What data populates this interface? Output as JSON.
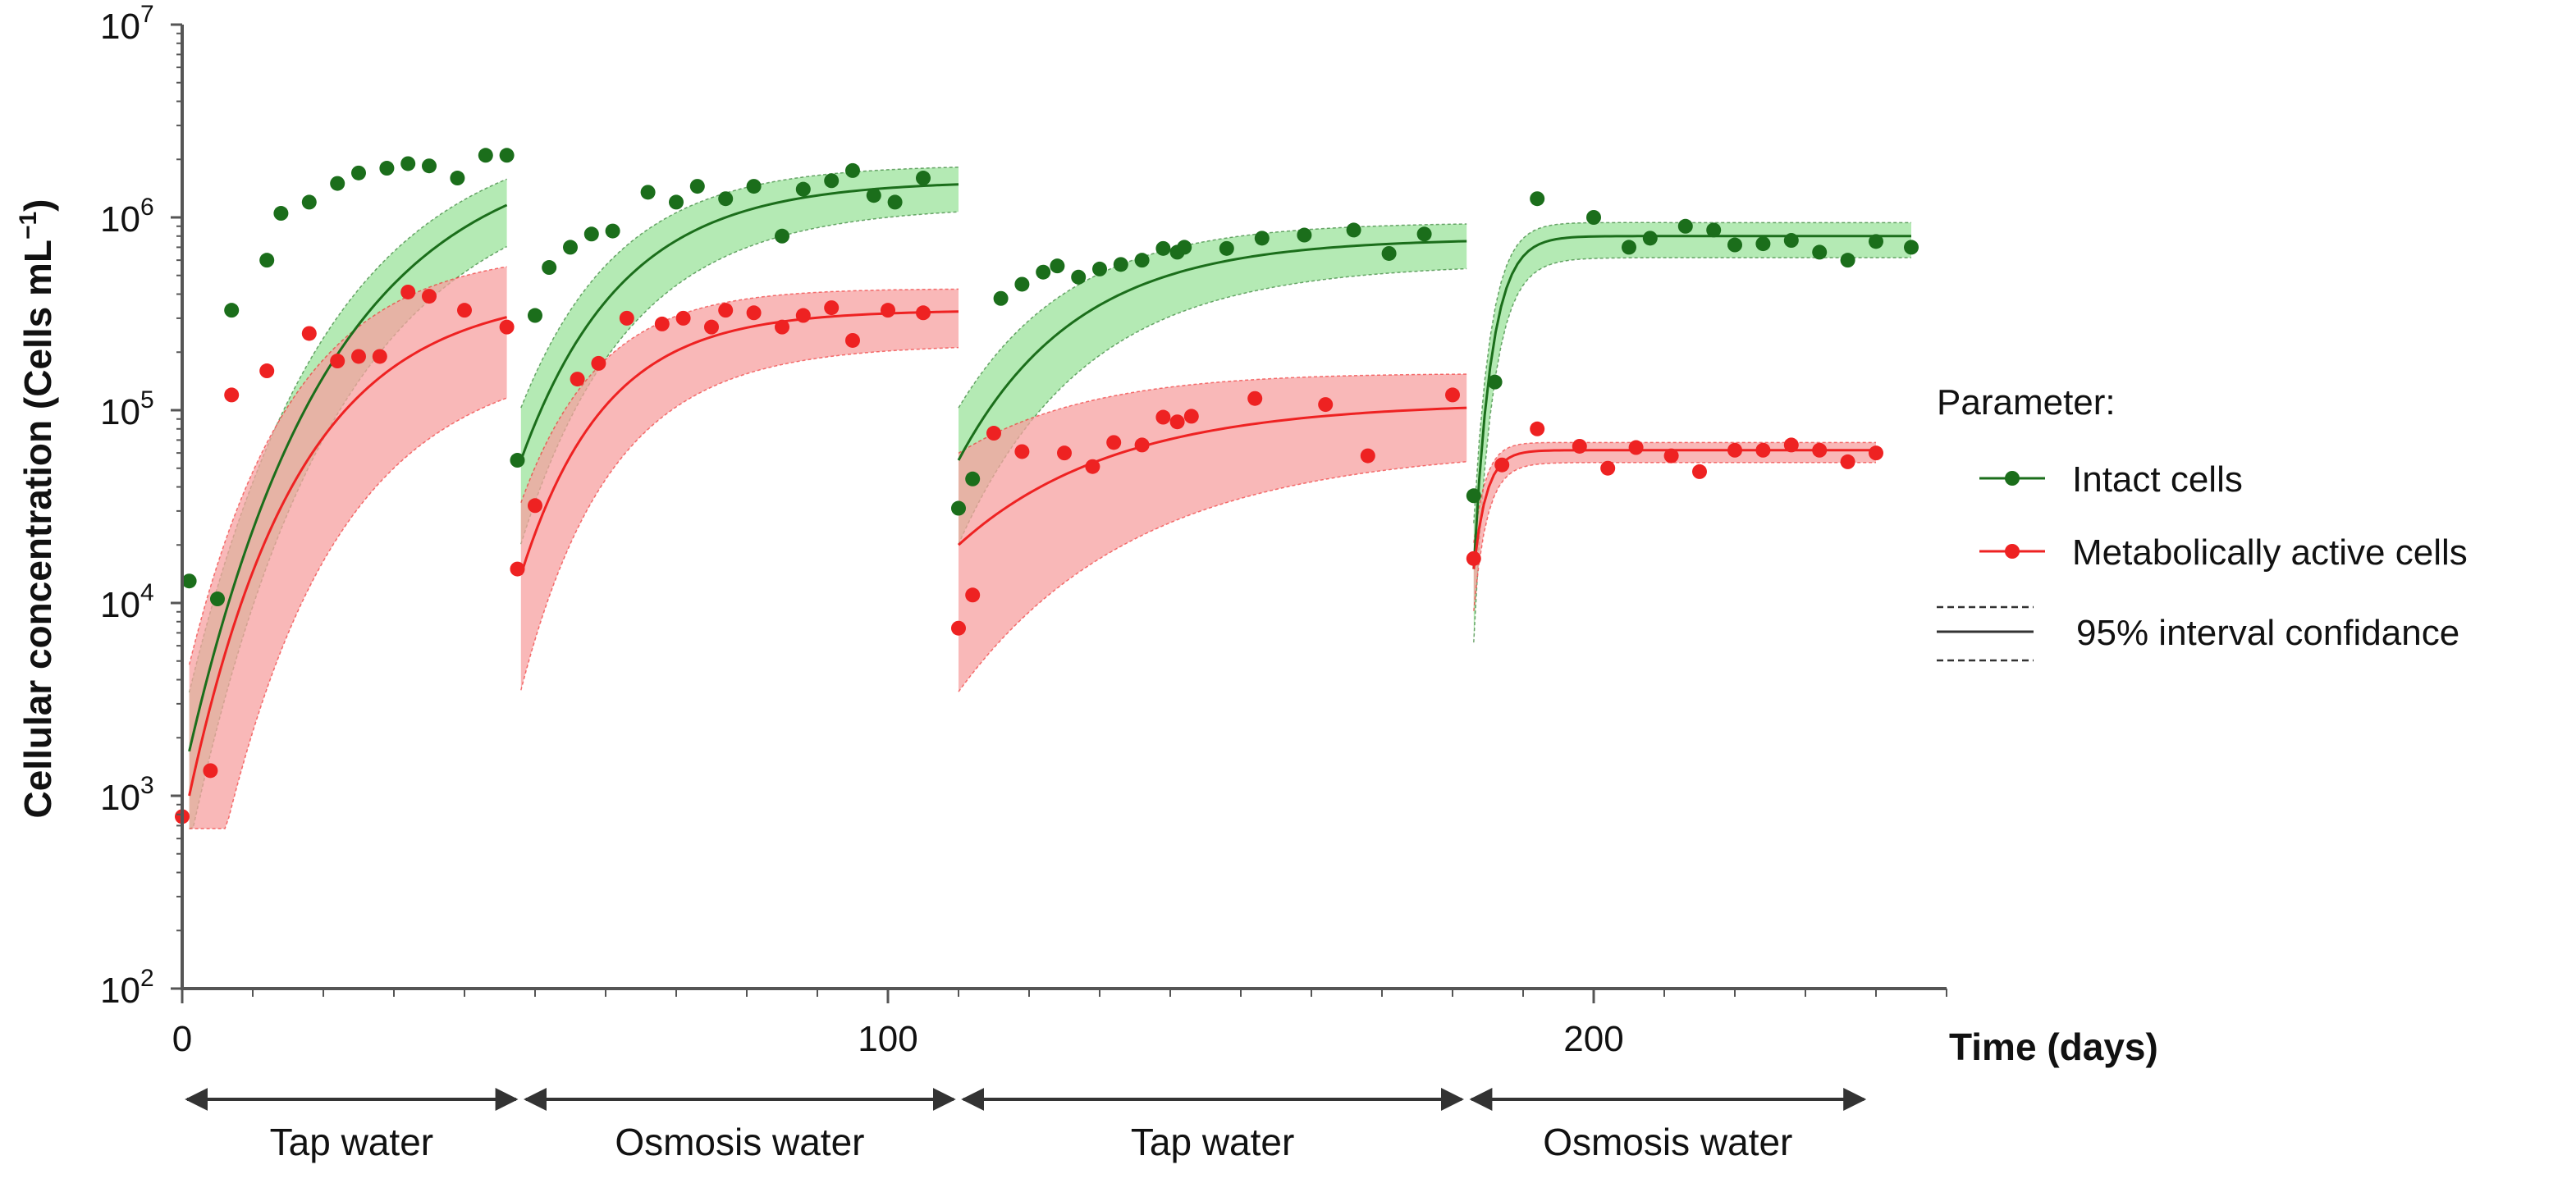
{
  "chart_data": {
    "type": "scatter",
    "title": "",
    "xlabel": "Time (days)",
    "ylabel": "Cellular concentration (Cells mL",
    "ylabel_sup": "−1",
    "ylabel_close": ")",
    "xlim": [
      0,
      250
    ],
    "ylim_log10": [
      2,
      7
    ],
    "x_ticks": [
      {
        "value": 0,
        "label": "0"
      },
      {
        "value": 100,
        "label": "100"
      },
      {
        "value": 200,
        "label": "200"
      }
    ],
    "y_ticks": [
      {
        "exp": 2,
        "base": "10",
        "sup": "2"
      },
      {
        "exp": 3,
        "base": "10",
        "sup": "3"
      },
      {
        "exp": 4,
        "base": "10",
        "sup": "4"
      },
      {
        "exp": 5,
        "base": "10",
        "sup": "5"
      },
      {
        "exp": 6,
        "base": "10",
        "sup": "6"
      },
      {
        "exp": 7,
        "base": "10",
        "sup": "7"
      }
    ],
    "phases": [
      {
        "label": "Tap water",
        "start": 0,
        "end": 48
      },
      {
        "label": "Osmosis water",
        "start": 48,
        "end": 110
      },
      {
        "label": "Tap water",
        "start": 110,
        "end": 182
      },
      {
        "label": "Osmosis water",
        "start": 182,
        "end": 239
      }
    ],
    "legend": {
      "title": "Parameter:",
      "entries": [
        "Intact cells",
        "Metabolically active cells"
      ],
      "ci_label": "95% interval confidance",
      "position": "right"
    },
    "colors": {
      "intact": "#1b6e1b",
      "intact_band": "#9be39b",
      "active": "#ee2222",
      "active_band": "#f7a0a0",
      "axis": "#555555"
    },
    "series": [
      {
        "name": "Intact cells",
        "points": [
          [
            1,
            13000
          ],
          [
            5,
            10500
          ],
          [
            7,
            330000
          ],
          [
            12,
            600000
          ],
          [
            14,
            1050000
          ],
          [
            18,
            1200000
          ],
          [
            22,
            1500000
          ],
          [
            25,
            1700000
          ],
          [
            29,
            1800000
          ],
          [
            32,
            1900000
          ],
          [
            35,
            1850000
          ],
          [
            39,
            1600000
          ],
          [
            43,
            2100000
          ],
          [
            46,
            2100000
          ],
          [
            47.5,
            55000
          ],
          [
            50,
            310000
          ],
          [
            52,
            550000
          ],
          [
            55,
            700000
          ],
          [
            58,
            820000
          ],
          [
            61,
            850000
          ],
          [
            66,
            1350000
          ],
          [
            70,
            1200000
          ],
          [
            73,
            1450000
          ],
          [
            77,
            1250000
          ],
          [
            81,
            1450000
          ],
          [
            85,
            800000
          ],
          [
            88,
            1400000
          ],
          [
            92,
            1550000
          ],
          [
            95,
            1750000
          ],
          [
            98,
            1300000
          ],
          [
            101,
            1200000
          ],
          [
            105,
            1600000
          ],
          [
            110,
            31000
          ],
          [
            112,
            44000
          ],
          [
            116,
            380000
          ],
          [
            119,
            450000
          ],
          [
            122,
            520000
          ],
          [
            124,
            560000
          ],
          [
            127,
            490000
          ],
          [
            130,
            540000
          ],
          [
            133,
            570000
          ],
          [
            136,
            600000
          ],
          [
            139,
            690000
          ],
          [
            141,
            660000
          ],
          [
            142,
            700000
          ],
          [
            148,
            690000
          ],
          [
            153,
            780000
          ],
          [
            159,
            810000
          ],
          [
            166,
            860000
          ],
          [
            171,
            650000
          ],
          [
            176,
            820000
          ],
          [
            183,
            36000
          ],
          [
            186,
            140000
          ],
          [
            192,
            1250000
          ],
          [
            200,
            1000000
          ],
          [
            205,
            700000
          ],
          [
            208,
            780000
          ],
          [
            213,
            900000
          ],
          [
            217,
            860000
          ],
          [
            220,
            720000
          ],
          [
            224,
            730000
          ],
          [
            228,
            760000
          ],
          [
            232,
            660000
          ],
          [
            236,
            600000
          ],
          [
            240,
            750000
          ],
          [
            245,
            700000
          ]
        ]
      },
      {
        "name": "Metabolically active cells",
        "points": [
          [
            0,
            780
          ],
          [
            4,
            1350
          ],
          [
            7,
            120000
          ],
          [
            12,
            160000
          ],
          [
            18,
            250000
          ],
          [
            22,
            180000
          ],
          [
            25,
            190000
          ],
          [
            28,
            190000
          ],
          [
            32,
            410000
          ],
          [
            35,
            390000
          ],
          [
            40,
            330000
          ],
          [
            46,
            270000
          ],
          [
            47.5,
            15000
          ],
          [
            50,
            32000
          ],
          [
            56,
            145000
          ],
          [
            59,
            175000
          ],
          [
            63,
            300000
          ],
          [
            68,
            280000
          ],
          [
            71,
            300000
          ],
          [
            75,
            270000
          ],
          [
            77,
            330000
          ],
          [
            81,
            320000
          ],
          [
            85,
            270000
          ],
          [
            88,
            310000
          ],
          [
            92,
            340000
          ],
          [
            95,
            230000
          ],
          [
            100,
            330000
          ],
          [
            105,
            320000
          ],
          [
            110,
            7400
          ],
          [
            112,
            11000
          ],
          [
            115,
            76000
          ],
          [
            119,
            61000
          ],
          [
            125,
            60000
          ],
          [
            129,
            51000
          ],
          [
            132,
            68000
          ],
          [
            136,
            66000
          ],
          [
            139,
            92000
          ],
          [
            141,
            87000
          ],
          [
            143,
            93000
          ],
          [
            152,
            115000
          ],
          [
            162,
            107000
          ],
          [
            168,
            58000
          ],
          [
            180,
            120000
          ],
          [
            183,
            17000
          ],
          [
            187,
            52000
          ],
          [
            192,
            80000
          ],
          [
            198,
            65000
          ],
          [
            202,
            50000
          ],
          [
            206,
            64000
          ],
          [
            211,
            58000
          ],
          [
            215,
            48000
          ],
          [
            220,
            62000
          ],
          [
            224,
            62000
          ],
          [
            228,
            66000
          ],
          [
            232,
            62000
          ],
          [
            236,
            54000
          ],
          [
            240,
            60000
          ]
        ]
      }
    ],
    "fits": [
      {
        "series": "Intact cells",
        "segments": [
          {
            "start": 1,
            "end": 46,
            "y0": 1700,
            "ymax": 2500000,
            "k": 0.05,
            "ci": 0.09
          },
          {
            "start": 48,
            "end": 110,
            "y0": 55000,
            "ymax": 1550000,
            "k": 0.07,
            "ci": 0.08
          },
          {
            "start": 110,
            "end": 182,
            "y0": 55000,
            "ymax": 780000,
            "k": 0.06,
            "ci": 0.08
          },
          {
            "start": 183,
            "end": 245,
            "y0": 15000,
            "ymax": 800000,
            "k": 0.4,
            "ci": 0.07
          }
        ]
      },
      {
        "series": "Metabolically active cells",
        "segments": [
          {
            "start": 1,
            "end": 46,
            "y0": 1000,
            "ymax": 420000,
            "k": 0.065,
            "ci": 0.2
          },
          {
            "start": 48,
            "end": 110,
            "y0": 14000,
            "ymax": 330000,
            "k": 0.085,
            "ci": 0.11
          },
          {
            "start": 110,
            "end": 182,
            "y0": 20000,
            "ymax": 110000,
            "k": 0.045,
            "ci": 0.14
          },
          {
            "start": 183,
            "end": 240,
            "y0": 15000,
            "ymax": 62000,
            "k": 0.55,
            "ci": 0.04
          }
        ]
      }
    ]
  }
}
